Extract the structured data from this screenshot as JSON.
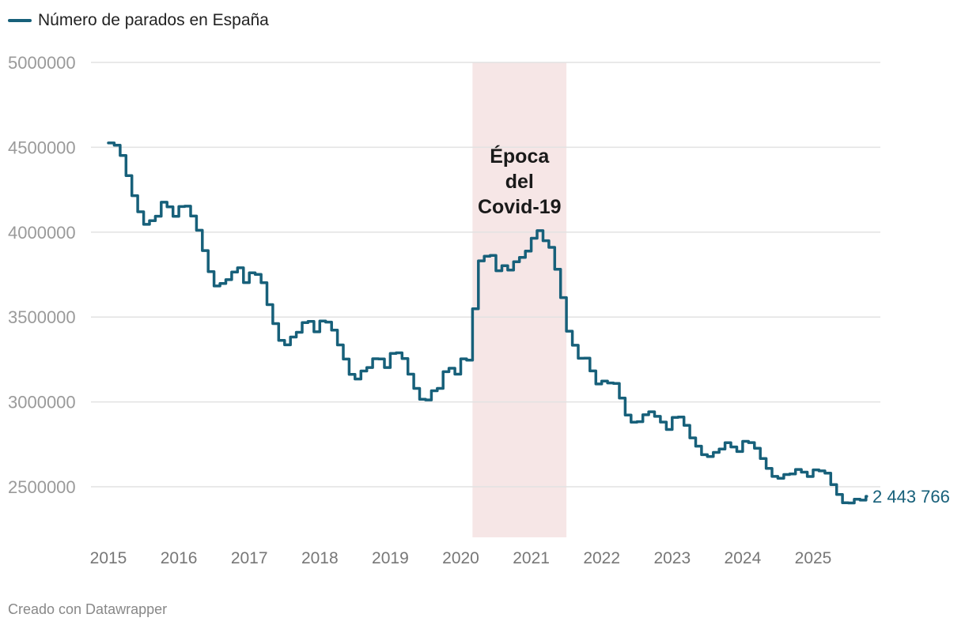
{
  "legend": {
    "label": "Número de parados en España"
  },
  "footer": "Creado con Datawrapper",
  "colors": {
    "line": "#17607a",
    "band": "#f6e6e6",
    "grid": "#e2e2e2"
  },
  "chart_data": {
    "type": "line",
    "step": true,
    "series": [
      {
        "name": "Número de parados en España",
        "start": "2015-01",
        "frequency": "monthly",
        "values": [
          4525391,
          4512153,
          4451939,
          4333016,
          4215031,
          4120304,
          4046276,
          4067955,
          4094042,
          4176369,
          4149298,
          4093508,
          4150915,
          4152986,
          4094770,
          4011024,
          3891403,
          3767054,
          3683061,
          3697496,
          3720297,
          3764982,
          3789823,
          3702974,
          3760231,
          3750876,
          3702317,
          3573036,
          3461128,
          3362811,
          3335924,
          3382324,
          3410182,
          3467026,
          3474281,
          3412781,
          3476528,
          3470248,
          3422551,
          3335868,
          3252130,
          3162162,
          3135021,
          3182068,
          3202509,
          3254139,
          3252867,
          3202297,
          3285761,
          3289040,
          3255084,
          3163566,
          3079491,
          3015686,
          3011433,
          3065804,
          3079711,
          3177659,
          3198184,
          3163605,
          3253853,
          3246047,
          3548312,
          3831203,
          3857776,
          3862883,
          3773034,
          3802814,
          3776485,
          3826043,
          3851312,
          3888137,
          3964353,
          4008789,
          3949640,
          3910628,
          3781250,
          3614339,
          3416498,
          3333915,
          3257068,
          3257802,
          3182687,
          3105905,
          3123078,
          3111684,
          3108763,
          3022503,
          2922911,
          2880582,
          2883812,
          2924240,
          2941919,
          2914892,
          2881380,
          2837653,
          2908397,
          2911015,
          2862260,
          2788370,
          2739110,
          2688842,
          2677874,
          2702700,
          2722468,
          2759404,
          2734831,
          2707456,
          2767860,
          2760408,
          2727003,
          2666500,
          2607850,
          2561067,
          2550237,
          2572121,
          2575285,
          2602054,
          2586018,
          2560718,
          2599443,
          2593449,
          2580138,
          2512718,
          2454883,
          2405963,
          2404606,
          2426511,
          2421180,
          2443766
        ]
      }
    ],
    "end_label": "2 443 766",
    "ylim": [
      2200000,
      5000000
    ],
    "yticks": [
      "5000000",
      "4500000",
      "4000000",
      "3500000",
      "3000000",
      "2500000"
    ],
    "ytick_values": [
      5000000,
      4500000,
      4000000,
      3500000,
      3000000,
      2500000
    ],
    "xticks": [
      "2015",
      "2016",
      "2017",
      "2018",
      "2019",
      "2020",
      "2021",
      "2022",
      "2023",
      "2024",
      "2025"
    ],
    "grid": true,
    "legend_position": "top-left",
    "annotation": {
      "lines": [
        "Época",
        "del",
        "Covid-19"
      ],
      "band_start": "2020-03",
      "band_end": "2021-07"
    }
  }
}
